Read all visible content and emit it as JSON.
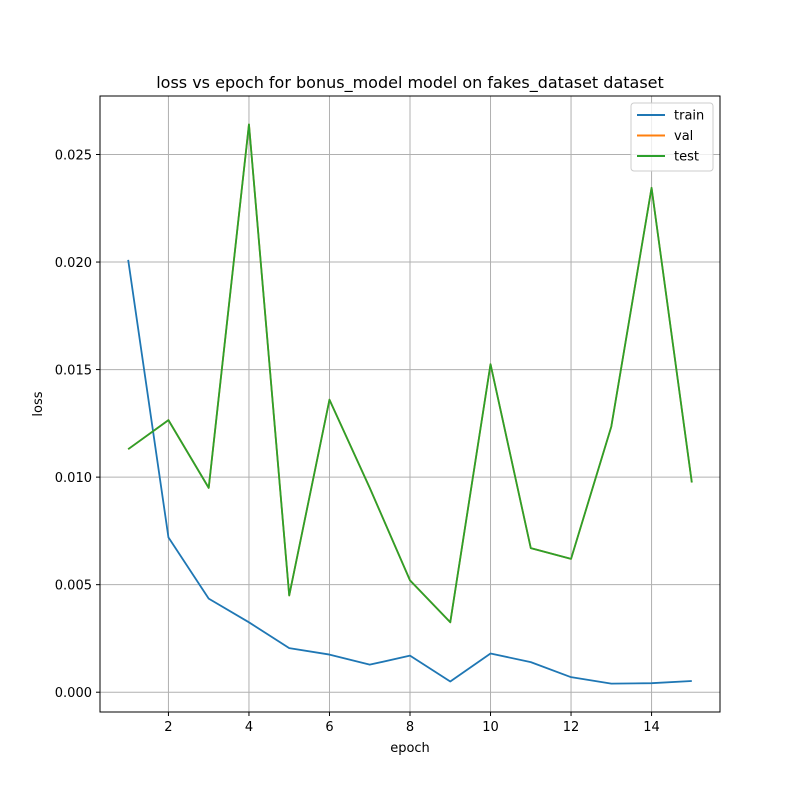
{
  "chart_data": {
    "type": "line",
    "title": "loss vs epoch for bonus_model model on fakes_dataset dataset",
    "xlabel": "epoch",
    "ylabel": "loss",
    "xlim": [
      0.3,
      15.7
    ],
    "ylim": [
      -0.00092,
      0.02772
    ],
    "xticks": [
      2,
      4,
      6,
      8,
      10,
      12,
      14
    ],
    "xtick_labels": [
      "2",
      "4",
      "6",
      "8",
      "10",
      "12",
      "14"
    ],
    "yticks": [
      0.0,
      0.005,
      0.01,
      0.015,
      0.02,
      0.025
    ],
    "ytick_labels": [
      "0.000",
      "0.005",
      "0.010",
      "0.015",
      "0.020",
      "0.025"
    ],
    "grid": true,
    "legend_position": "top-right",
    "x": [
      1,
      2,
      3,
      4,
      5,
      6,
      7,
      8,
      9,
      10,
      11,
      12,
      13,
      14,
      15
    ],
    "series": [
      {
        "name": "train",
        "color": "#1f77b4",
        "values": [
          0.0201,
          0.0072,
          0.00435,
          0.00325,
          0.00205,
          0.00175,
          0.00128,
          0.0017,
          0.0005,
          0.0018,
          0.0014,
          0.0007,
          0.0004,
          0.00042,
          0.00052
        ]
      },
      {
        "name": "val",
        "color": "#ff7f0e",
        "values": [
          0.0113,
          0.01265,
          0.0095,
          0.0264,
          0.0045,
          0.0136,
          0.0095,
          0.0052,
          0.00325,
          0.01525,
          0.0067,
          0.0062,
          0.01235,
          0.02345,
          0.00975
        ]
      },
      {
        "name": "test",
        "color": "#2ca02c",
        "values": [
          0.0113,
          0.01265,
          0.0095,
          0.0264,
          0.0045,
          0.0136,
          0.0095,
          0.0052,
          0.00325,
          0.01525,
          0.0067,
          0.0062,
          0.01235,
          0.02345,
          0.00975
        ]
      }
    ]
  }
}
